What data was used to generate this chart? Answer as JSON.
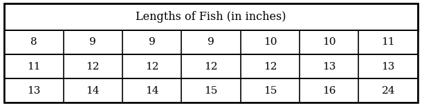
{
  "title": "Lengths of Fish (in inches)",
  "rows": [
    [
      "8",
      "9",
      "9",
      "9",
      "10",
      "10",
      "11"
    ],
    [
      "11",
      "12",
      "12",
      "12",
      "12",
      "13",
      "13"
    ],
    [
      "13",
      "14",
      "14",
      "15",
      "15",
      "16",
      "24"
    ]
  ],
  "n_cols": 7,
  "n_rows": 3,
  "bg_color": "#ffffff",
  "border_color": "#000000",
  "text_color": "#000000",
  "title_fontsize": 11.5,
  "cell_fontsize": 11,
  "figsize": [
    6.1,
    1.54
  ],
  "dpi": 100
}
